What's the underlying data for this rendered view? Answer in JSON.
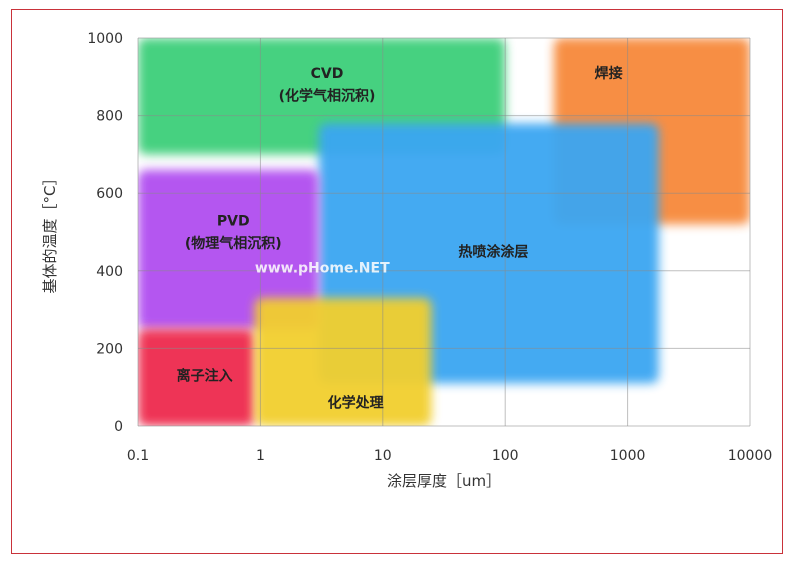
{
  "chart_data": {
    "type": "area",
    "title": "",
    "xlabel": "涂层厚度［um］",
    "ylabel": "基体的温度［°C］",
    "x_scale": "log",
    "xlim": [
      0.1,
      10000
    ],
    "ylim": [
      0,
      1000
    ],
    "x_ticks": [
      "0.1",
      "1",
      "10",
      "100",
      "1000",
      "10000"
    ],
    "y_ticks": [
      "0",
      "200",
      "400",
      "600",
      "800",
      "1000"
    ],
    "grid": true,
    "regions": [
      {
        "name": "CVD",
        "sublabel": "(化学气相沉积)",
        "color": "#3ecf7a",
        "x_range": [
          0.1,
          100
        ],
        "y_range": [
          700,
          1000
        ],
        "label_x": 3.5,
        "label_y": 910,
        "sub_y": 852
      },
      {
        "name": "焊接",
        "sublabel": "",
        "color": "#f7893b",
        "x_range": [
          250,
          10000
        ],
        "y_range": [
          520,
          1000
        ],
        "label_x": 700,
        "label_y": 910
      },
      {
        "name": "热喷涂涂层",
        "sublabel": "",
        "color": "#3aa6f2",
        "x_range": [
          3,
          1800
        ],
        "y_range": [
          110,
          780
        ],
        "label_x": 80,
        "label_y": 450
      },
      {
        "name": "PVD",
        "sublabel": "(物理气相沉积)",
        "color": "#b04df0",
        "x_range": [
          0.1,
          3
        ],
        "y_range": [
          250,
          660
        ],
        "label_x": 0.6,
        "label_y": 530,
        "sub_y": 472
      },
      {
        "name": "离子注入",
        "sublabel": "",
        "color": "#ee2a4e",
        "x_range": [
          0.1,
          0.9
        ],
        "y_range": [
          0,
          250
        ],
        "label_x": 0.35,
        "label_y": 130
      },
      {
        "name": "化学处理",
        "sublabel": "",
        "color": "#f2cf2e",
        "x_range": [
          0.9,
          25
        ],
        "y_range": [
          0,
          330
        ],
        "label_x": 6,
        "label_y": 60
      }
    ]
  },
  "watermark": "www.pHome.NET"
}
